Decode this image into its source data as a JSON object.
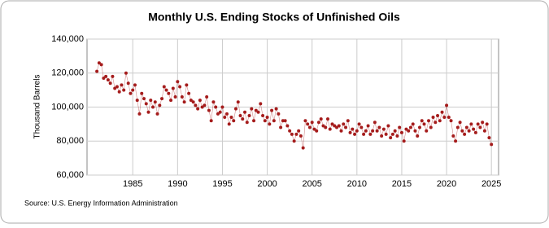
{
  "chart_data": {
    "type": "line",
    "markers": true,
    "title": "Monthly U.S. Ending Stocks of Unfinished Oils",
    "y_label": "Thousand Barrels",
    "source": "Source: U.S. Energy Information Administration",
    "x": [
      1981,
      1981.25,
      1981.5,
      1981.75,
      1982,
      1982.25,
      1982.5,
      1982.75,
      1983,
      1983.25,
      1983.5,
      1983.75,
      1984,
      1984.25,
      1984.5,
      1984.75,
      1985,
      1985.25,
      1985.5,
      1985.75,
      1986,
      1986.25,
      1986.5,
      1986.75,
      1987,
      1987.25,
      1987.5,
      1987.75,
      1988,
      1988.25,
      1988.5,
      1988.75,
      1989,
      1989.25,
      1989.5,
      1989.75,
      1990,
      1990.25,
      1990.5,
      1990.75,
      1991,
      1991.25,
      1991.5,
      1991.75,
      1992,
      1992.25,
      1992.5,
      1992.75,
      1993,
      1993.25,
      1993.5,
      1993.75,
      1994,
      1994.25,
      1994.5,
      1994.75,
      1995,
      1995.25,
      1995.5,
      1995.75,
      1996,
      1996.25,
      1996.5,
      1996.75,
      1997,
      1997.25,
      1997.5,
      1997.75,
      1998,
      1998.25,
      1998.5,
      1998.75,
      1999,
      1999.25,
      1999.5,
      1999.75,
      2000,
      2000.25,
      2000.5,
      2000.75,
      2001,
      2001.25,
      2001.5,
      2001.75,
      2002,
      2002.25,
      2002.5,
      2002.75,
      2003,
      2003.25,
      2003.5,
      2003.75,
      2004,
      2004.25,
      2004.5,
      2004.75,
      2005,
      2005.25,
      2005.5,
      2005.75,
      2006,
      2006.25,
      2006.5,
      2006.75,
      2007,
      2007.25,
      2007.5,
      2007.75,
      2008,
      2008.25,
      2008.5,
      2008.75,
      2009,
      2009.25,
      2009.5,
      2009.75,
      2010,
      2010.25,
      2010.5,
      2010.75,
      2011,
      2011.25,
      2011.5,
      2011.75,
      2012,
      2012.25,
      2012.5,
      2012.75,
      2013,
      2013.25,
      2013.5,
      2013.75,
      2014,
      2014.25,
      2014.5,
      2014.75,
      2015,
      2015.25,
      2015.5,
      2015.75,
      2016,
      2016.25,
      2016.5,
      2016.75,
      2017,
      2017.25,
      2017.5,
      2017.75,
      2018,
      2018.25,
      2018.5,
      2018.75,
      2019,
      2019.25,
      2019.5,
      2019.75,
      2020,
      2020.25,
      2020.5,
      2020.75,
      2021,
      2021.25,
      2021.5,
      2021.75,
      2022,
      2022.25,
      2022.5,
      2022.75,
      2023,
      2023.25,
      2023.5,
      2023.75,
      2024,
      2024.25,
      2024.5,
      2024.75,
      2025
    ],
    "series": [
      {
        "color": "#a51c1c",
        "values": [
          121000,
          126000,
          125000,
          117000,
          118000,
          116000,
          114000,
          118000,
          111000,
          112000,
          109000,
          113000,
          110000,
          120000,
          114000,
          108000,
          110000,
          113000,
          104000,
          96000,
          108000,
          105000,
          102000,
          97000,
          104000,
          100000,
          103000,
          96000,
          101000,
          105000,
          112000,
          110000,
          108000,
          104000,
          111000,
          106000,
          115000,
          112000,
          106000,
          103000,
          113000,
          108000,
          104000,
          103000,
          101000,
          99000,
          104000,
          100000,
          101000,
          106000,
          98000,
          92000,
          103000,
          100000,
          96000,
          97000,
          100000,
          94000,
          96000,
          90000,
          94000,
          92000,
          99000,
          103000,
          95000,
          93000,
          97000,
          91000,
          95000,
          99000,
          92000,
          98000,
          97000,
          102000,
          95000,
          92000,
          94000,
          90000,
          98000,
          92000,
          99000,
          96000,
          88000,
          92000,
          92000,
          89000,
          86000,
          84000,
          80000,
          84000,
          86000,
          83000,
          76000,
          92000,
          90000,
          88000,
          91000,
          87000,
          86000,
          91000,
          93000,
          89000,
          88000,
          93000,
          87000,
          90000,
          89000,
          88000,
          89000,
          86000,
          90000,
          88000,
          92000,
          85000,
          87000,
          84000,
          86000,
          90000,
          88000,
          84000,
          86000,
          89000,
          84000,
          86000,
          91000,
          86000,
          88000,
          83000,
          87000,
          84000,
          89000,
          82000,
          84000,
          86000,
          83000,
          88000,
          85000,
          80000,
          87000,
          86000,
          88000,
          90000,
          86000,
          83000,
          88000,
          92000,
          90000,
          86000,
          92000,
          88000,
          94000,
          91000,
          95000,
          92000,
          97000,
          94000,
          101000,
          94000,
          92000,
          83000,
          80000,
          88000,
          91000,
          86000,
          84000,
          88000,
          86000,
          90000,
          87000,
          85000,
          90000,
          88000,
          91000,
          86000,
          90000,
          82000,
          78000
        ]
      }
    ],
    "xlim": [
      1979.9,
      2025.8
    ],
    "xticks": [
      1985,
      1990,
      1995,
      2000,
      2005,
      2010,
      2015,
      2020,
      2025
    ],
    "ylim": [
      60000,
      140000
    ],
    "yticks": [
      {
        "value": 60000,
        "label": "60,000"
      },
      {
        "value": 80000,
        "label": "80,000"
      },
      {
        "value": 100000,
        "label": "100,000"
      },
      {
        "value": 120000,
        "label": "120,000"
      },
      {
        "value": 140000,
        "label": "140,000"
      }
    ],
    "grid": true
  }
}
